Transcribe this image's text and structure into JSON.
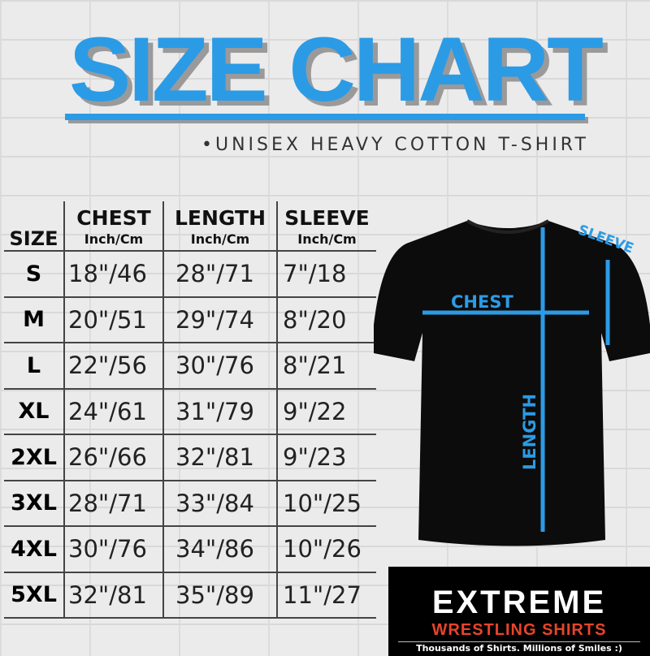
{
  "title": "SIZE CHART",
  "subtitle": "•UNISEX HEAVY COTTON T-SHIRT",
  "accent_color": "#2b9be6",
  "table": {
    "headers": {
      "size": "SIZE",
      "chest": "CHEST",
      "length": "LENGTH",
      "sleeve": "SLEEVE",
      "unit": "Inch/Cm"
    },
    "rows": [
      {
        "size": "S",
        "chest": "18\"/46",
        "length": "28\"/71",
        "sleeve": "7\"/18"
      },
      {
        "size": "M",
        "chest": "20\"/51",
        "length": "29\"/74",
        "sleeve": "8\"/20"
      },
      {
        "size": "L",
        "chest": "22\"/56",
        "length": "30\"/76",
        "sleeve": "8\"/21"
      },
      {
        "size": "XL",
        "chest": "24\"/61",
        "length": "31\"/79",
        "sleeve": "9\"/22"
      },
      {
        "size": "2XL",
        "chest": "26\"/66",
        "length": "32\"/81",
        "sleeve": "9\"/23"
      },
      {
        "size": "3XL",
        "chest": "28\"/71",
        "length": "33\"/84",
        "sleeve": "10\"/25"
      },
      {
        "size": "4XL",
        "chest": "30\"/76",
        "length": "34\"/86",
        "sleeve": "10\"/26"
      },
      {
        "size": "5XL",
        "chest": "32\"/81",
        "length": "35\"/89",
        "sleeve": "11\"/27"
      }
    ]
  },
  "diagram": {
    "chest": "CHEST",
    "length": "LENGTH",
    "sleeve": "SLEEVE"
  },
  "logo": {
    "line1": "EXTREME",
    "line2": "WRESTLING SHIRTS",
    "tagline": "Thousands of Shirts. Millions of Smiles :)"
  }
}
